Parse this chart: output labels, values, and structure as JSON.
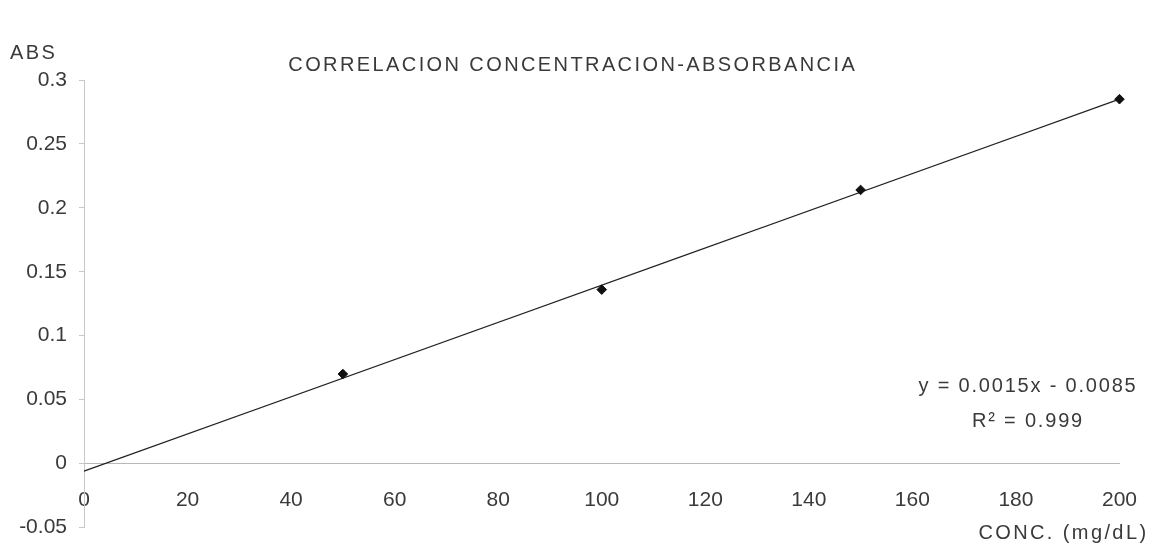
{
  "chart_data": {
    "type": "scatter",
    "title": "CORRELACION CONCENTRACION-ABSORBANCIA",
    "xlabel": "CONC. (mg/dL)",
    "ylabel": "ABS",
    "x": [
      50,
      100,
      150,
      200
    ],
    "series": [
      {
        "color": "#111111",
        "marker": "diamond",
        "values": [
          0.07,
          0.136,
          0.214,
          0.285
        ]
      },
      {
        "type": "line",
        "x": [
          0,
          200
        ],
        "color": "#222222",
        "marker": "none",
        "line_style": "solid",
        "values": [
          -0.006,
          0.285
        ]
      }
    ],
    "xlim": [
      0,
      200
    ],
    "xticks": [
      0,
      20,
      40,
      60,
      80,
      100,
      120,
      140,
      160,
      180,
      200
    ],
    "ylim": [
      -0.05,
      0.3
    ],
    "yticks": [
      -0.05,
      0,
      0.05,
      0.1,
      0.15,
      0.2,
      0.25,
      0.3
    ],
    "annotations": [
      "y = 0.0015x - 0.0085",
      "R² = 0.999"
    ]
  }
}
